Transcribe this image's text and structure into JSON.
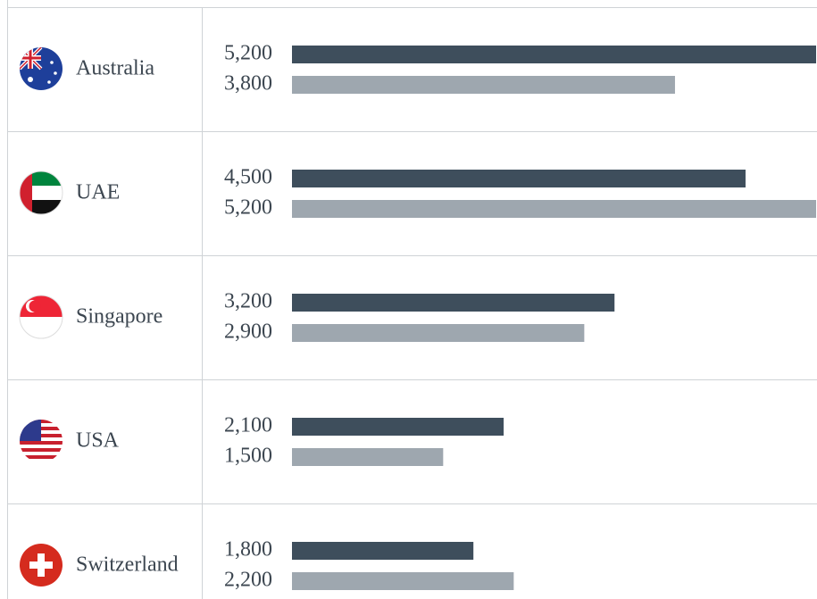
{
  "chart_data": {
    "type": "bar",
    "categories": [
      "Australia",
      "UAE",
      "Singapore",
      "USA",
      "Switzerland"
    ],
    "series": [
      {
        "color": "#3e4e5c",
        "values": [
          5200,
          4500,
          3200,
          2100,
          1800
        ],
        "value_labels": [
          "5,200",
          "4,500",
          "3,200",
          "2,100",
          "1,800"
        ]
      },
      {
        "color": "#9ea7af",
        "values": [
          3800,
          5200,
          2900,
          1500,
          2200
        ],
        "value_labels": [
          "3,800",
          "5,200",
          "2,900",
          "1,500",
          "2,200"
        ]
      }
    ]
  }
}
